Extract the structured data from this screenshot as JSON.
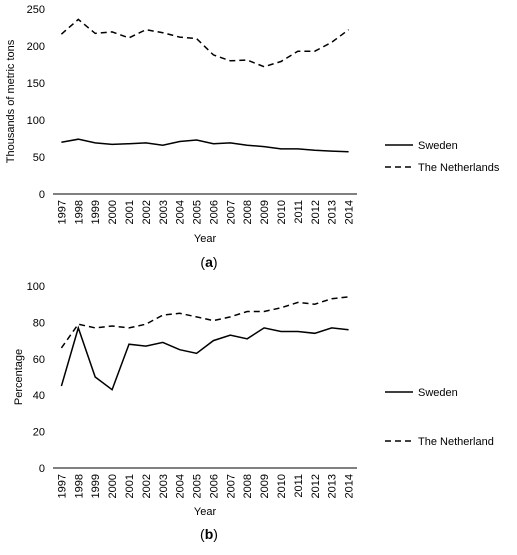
{
  "chart_data": [
    {
      "type": "line",
      "panel_label": "(a)",
      "panel_letter": "a",
      "title": "",
      "xlabel": "Year",
      "ylabel": "Thousands of metric tons",
      "ylim": [
        0,
        250
      ],
      "yticks": [
        0,
        50,
        100,
        150,
        200,
        250
      ],
      "grid": false,
      "legend_position": "right",
      "categories": [
        "1997",
        "1998",
        "1999",
        "2000",
        "2001",
        "2002",
        "2003",
        "2004",
        "2005",
        "2006",
        "2007",
        "2008",
        "2009",
        "2010",
        "2011",
        "2012",
        "2013",
        "2014"
      ],
      "series": [
        {
          "name": "Sweden",
          "style": "solid",
          "values": [
            70,
            74,
            69,
            67,
            68,
            69,
            66,
            71,
            73,
            68,
            69,
            66,
            64,
            61,
            61,
            59,
            58,
            57
          ]
        },
        {
          "name": "The Netherlands",
          "style": "dashed",
          "values": [
            216,
            236,
            217,
            219,
            211,
            222,
            218,
            212,
            210,
            188,
            180,
            181,
            172,
            179,
            193,
            193,
            205,
            222
          ]
        }
      ]
    },
    {
      "type": "line",
      "panel_label": "(b)",
      "panel_letter": "b",
      "title": "",
      "xlabel": "Year",
      "ylabel": "Percentage",
      "ylim": [
        0,
        100
      ],
      "yticks": [
        0,
        20,
        40,
        60,
        80,
        100
      ],
      "grid": false,
      "legend_position": "right",
      "categories": [
        "1997",
        "1998",
        "1999",
        "2000",
        "2001",
        "2002",
        "2003",
        "2004",
        "2005",
        "2006",
        "2007",
        "2008",
        "2009",
        "2010",
        "2011",
        "2012",
        "2013",
        "2014"
      ],
      "series": [
        {
          "name": "Sweden",
          "style": "solid",
          "values": [
            45,
            77,
            50,
            43,
            68,
            67,
            69,
            65,
            63,
            70,
            73,
            71,
            77,
            75,
            75,
            74,
            77,
            76
          ]
        },
        {
          "name": "The Netherland",
          "style": "dashed",
          "values": [
            66,
            79,
            77,
            78,
            77,
            79,
            84,
            85,
            83,
            81,
            83,
            86,
            86,
            88,
            91,
            90,
            93,
            94
          ]
        }
      ]
    }
  ]
}
